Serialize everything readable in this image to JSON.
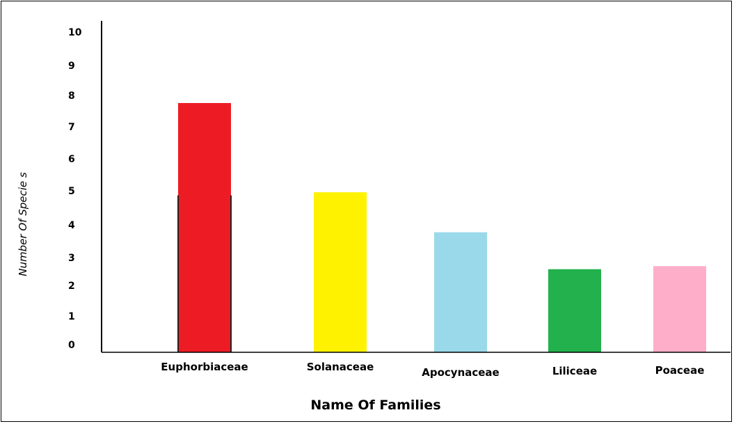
{
  "chart_data": {
    "type": "bar",
    "categories": [
      "Euphorbiaceae",
      "Solanaceae",
      "Apocynaceae",
      "Liliceae",
      "Poaceae"
    ],
    "values": [
      8.1,
      5.2,
      3.9,
      2.7,
      2.8
    ],
    "colors": [
      "#ed1c24",
      "#fff200",
      "#99d9ea",
      "#22b14c",
      "#ffaec9"
    ],
    "xlabel": "Name Of Families",
    "ylabel": "Number Of Specie s",
    "yticks": [
      10,
      9,
      8,
      7,
      6,
      5,
      4,
      3,
      2,
      1,
      0
    ],
    "grid": false,
    "legend": "none"
  }
}
